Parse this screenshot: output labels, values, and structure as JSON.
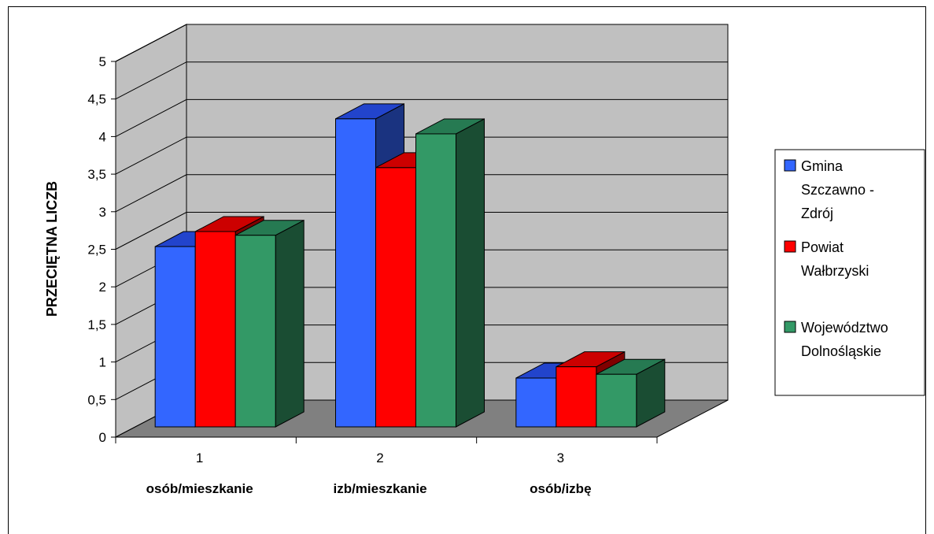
{
  "chart_data": {
    "type": "bar",
    "variant": "3d-clustered-column",
    "title": "",
    "ylabel": "PRZECIĘTNA LICZBA",
    "ylabel_visible": "PRZECIĘTNA LICZB",
    "ylim": [
      0,
      5
    ],
    "yticks": [
      "0",
      "0,5",
      "1",
      "1,5",
      "2",
      "2,5",
      "3",
      "3,5",
      "4",
      "4,5",
      "5"
    ],
    "ytick_values": [
      0,
      0.5,
      1,
      1.5,
      2,
      2.5,
      3,
      3.5,
      4,
      4.5,
      5
    ],
    "categories": [
      "1",
      "2",
      "3"
    ],
    "category_labels": [
      "osób/mieszkanie",
      "izb/mieszkanie",
      "osób/izbę"
    ],
    "grid": true,
    "legend_position": "right",
    "series": [
      {
        "name": "Gmina Szczawno - Zdrój",
        "legend_lines": [
          "Gmina",
          "Szczawno -",
          "Zdrój"
        ],
        "values": [
          2.4,
          4.1,
          0.65
        ],
        "color": "#3366ff",
        "top_color": "#2244cc",
        "side_color": "#1a3380"
      },
      {
        "name": "Powiat Wałbrzyski",
        "legend_lines": [
          "Powiat",
          "Wałbrzyski"
        ],
        "values": [
          2.6,
          3.45,
          0.8
        ],
        "color": "#ff0000",
        "top_color": "#cc0000",
        "side_color": "#800000"
      },
      {
        "name": "Województwo Dolnośląskie",
        "legend_lines": [
          "Województwo",
          "Dolnośląskie"
        ],
        "values": [
          2.55,
          3.9,
          0.7
        ],
        "color": "#339966",
        "top_color": "#267a52",
        "side_color": "#1a4d33"
      }
    ],
    "colors": {
      "wall": "#c0c0c0",
      "floor": "#808080",
      "grid": "#000000"
    }
  }
}
